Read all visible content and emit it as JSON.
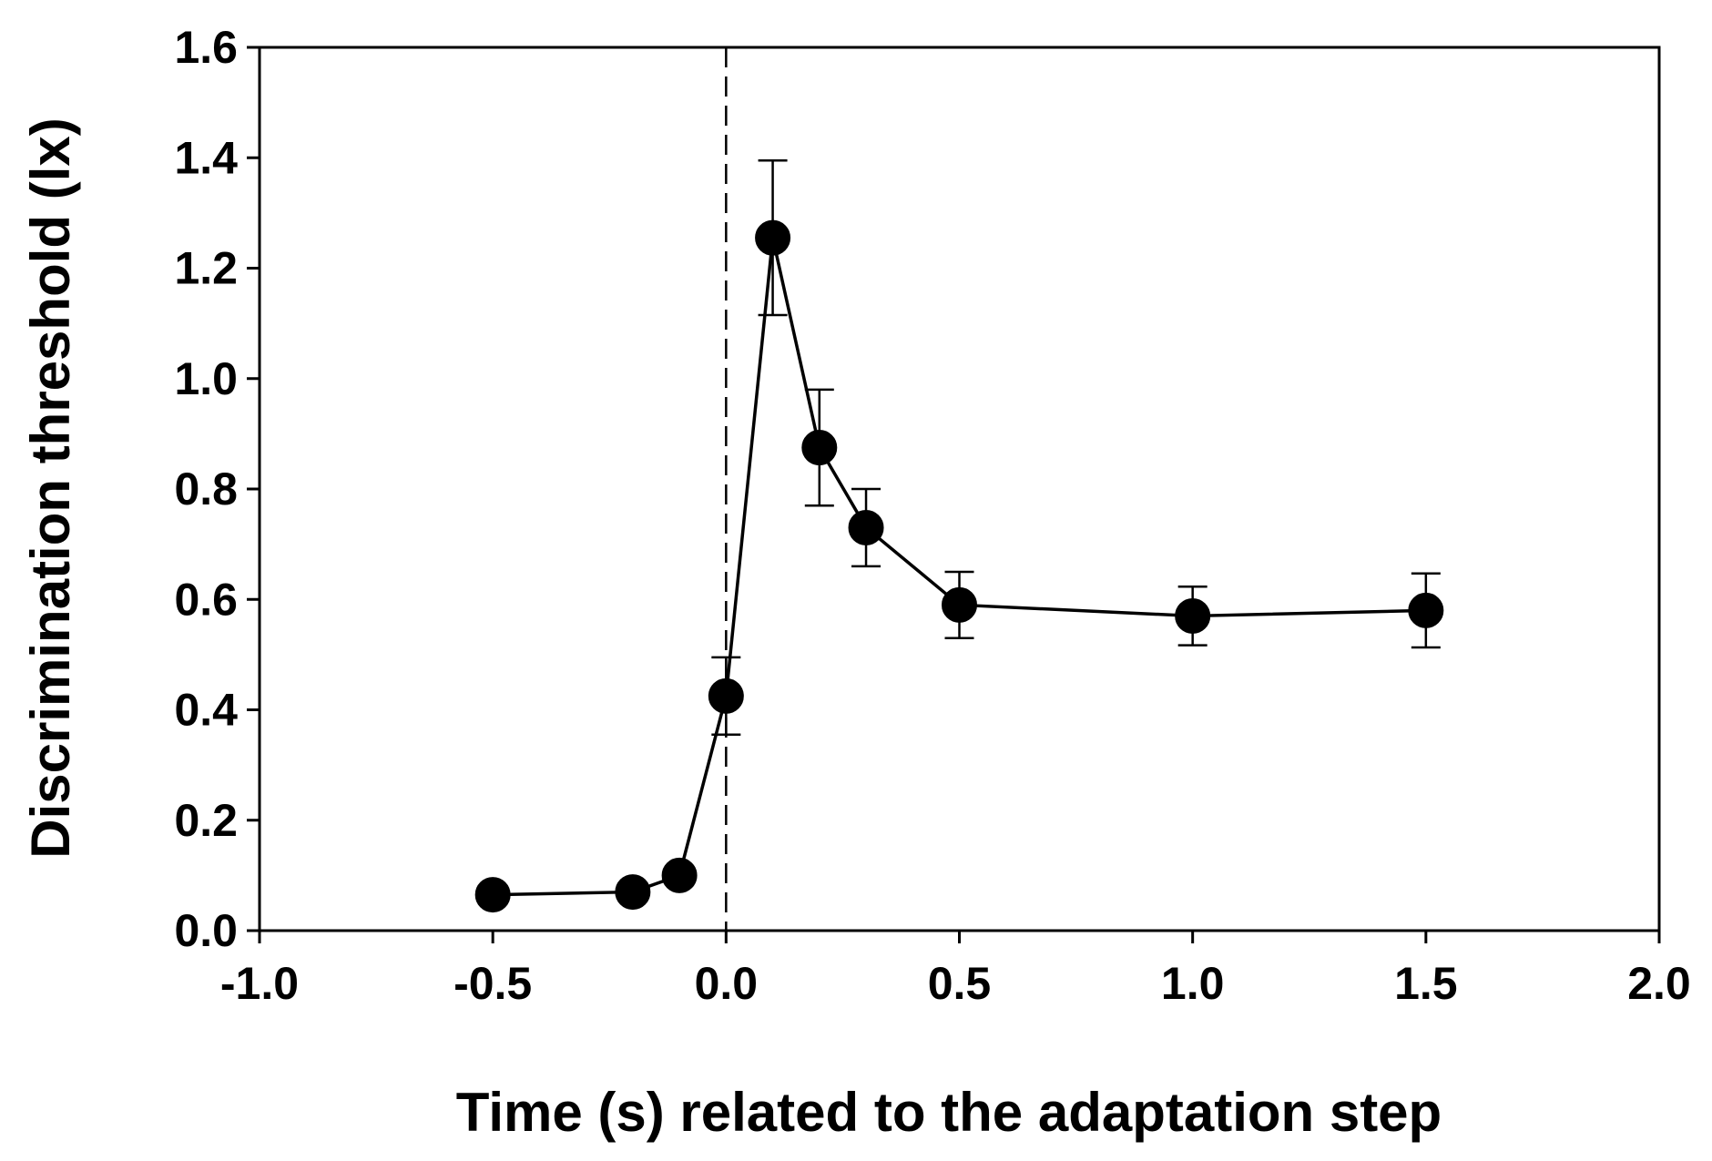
{
  "chart_data": {
    "type": "line",
    "title": "",
    "xlabel": "Time (s) related to the adaptation step",
    "ylabel": "Discrimination threshold (lx)",
    "xlim": [
      -1.0,
      2.0
    ],
    "ylim": [
      0.0,
      1.6
    ],
    "x_ticks": [
      -1.0,
      -0.5,
      0.0,
      0.5,
      1.0,
      1.5,
      2.0
    ],
    "x_tick_labels": [
      "-1.0",
      "-0.5",
      "0.0",
      "0.5",
      "1.0",
      "1.5",
      "2.0"
    ],
    "y_ticks": [
      0.0,
      0.2,
      0.4,
      0.6,
      0.8,
      1.0,
      1.2,
      1.4,
      1.6
    ],
    "y_tick_labels": [
      "0.0",
      "0.2",
      "0.4",
      "0.6",
      "0.8",
      "1.0",
      "1.2",
      "1.4",
      "1.6"
    ],
    "grid": false,
    "legend": "none",
    "reference_line": {
      "x": 0.0,
      "style": "dashed",
      "color": "#000000"
    },
    "series": [
      {
        "name": "Discrimination threshold",
        "color": "#000000",
        "marker": "filled-circle",
        "x": [
          -0.5,
          -0.2,
          -0.1,
          0.0,
          0.1,
          0.2,
          0.3,
          0.5,
          1.0,
          1.5
        ],
        "y": [
          0.065,
          0.07,
          0.1,
          0.425,
          1.255,
          0.875,
          0.73,
          0.59,
          0.57,
          0.58
        ],
        "error": [
          null,
          null,
          null,
          0.07,
          0.14,
          0.105,
          0.07,
          0.06,
          0.053,
          0.067
        ]
      }
    ]
  }
}
